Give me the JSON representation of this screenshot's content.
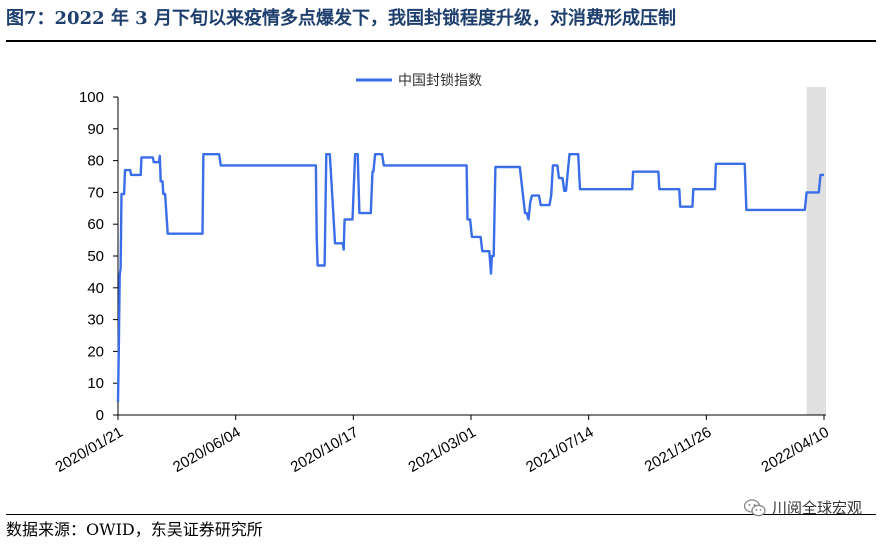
{
  "header": {
    "title": "图7：2022 年 3 月下旬以来疫情多点爆发下，我国封锁程度升级，对消费形成压制"
  },
  "footer": {
    "source": "数据来源：OWID，东吴证券研究所",
    "watermark": "川阅全球宏观",
    "watermark_icon": "wechat-icon"
  },
  "colors": {
    "line": "#3a6ee8",
    "shade": "#e0e0e0",
    "title": "#1e3f6e"
  },
  "chart_data": {
    "type": "line",
    "title": "",
    "xlabel": "",
    "ylabel": "",
    "ylim": [
      0,
      100
    ],
    "yticks": [
      0,
      10,
      20,
      30,
      40,
      50,
      60,
      70,
      80,
      90,
      100
    ],
    "xlim": [
      "2020-01-21",
      "2022-04-10"
    ],
    "xticks": [
      "2020/01/21",
      "2020/06/04",
      "2020/10/17",
      "2021/03/01",
      "2021/07/14",
      "2021/11/26",
      "2022/04/10"
    ],
    "legend": {
      "position": "top-center",
      "entries": [
        "中国封锁指数"
      ]
    },
    "shaded_region": {
      "start": "2022-03-21",
      "end": "2022-04-10"
    },
    "series": [
      {
        "name": "中国封锁指数",
        "points": [
          [
            "2020-01-21",
            4
          ],
          [
            "2020-01-22",
            23
          ],
          [
            "2020-01-23",
            44
          ],
          [
            "2020-01-24",
            46
          ],
          [
            "2020-01-25",
            69.5
          ],
          [
            "2020-01-28",
            69.5
          ],
          [
            "2020-01-29",
            77
          ],
          [
            "2020-02-04",
            77
          ],
          [
            "2020-02-05",
            75.5
          ],
          [
            "2020-02-16",
            75.5
          ],
          [
            "2020-02-17",
            81
          ],
          [
            "2020-03-01",
            81
          ],
          [
            "2020-03-02",
            79.5
          ],
          [
            "2020-03-08",
            79.5
          ],
          [
            "2020-03-09",
            81.5
          ],
          [
            "2020-03-10",
            73.5
          ],
          [
            "2020-03-12",
            73.5
          ],
          [
            "2020-03-13",
            69.5
          ],
          [
            "2020-03-15",
            69.5
          ],
          [
            "2020-03-18",
            57
          ],
          [
            "2020-04-27",
            57
          ],
          [
            "2020-04-28",
            82
          ],
          [
            "2020-05-16",
            82
          ],
          [
            "2020-05-18",
            78.5
          ],
          [
            "2020-09-04",
            78.5
          ],
          [
            "2020-09-05",
            56
          ],
          [
            "2020-09-06",
            47
          ],
          [
            "2020-09-14",
            47
          ],
          [
            "2020-09-16",
            82
          ],
          [
            "2020-09-20",
            82
          ],
          [
            "2020-09-24",
            63.5
          ],
          [
            "2020-09-26",
            54
          ],
          [
            "2020-10-05",
            54
          ],
          [
            "2020-10-06",
            52
          ],
          [
            "2020-10-07",
            61.5
          ],
          [
            "2020-10-16",
            61.5
          ],
          [
            "2020-10-19",
            82
          ],
          [
            "2020-10-22",
            82
          ],
          [
            "2020-10-24",
            63.5
          ],
          [
            "2020-11-06",
            63.5
          ],
          [
            "2020-11-08",
            76.5
          ],
          [
            "2020-11-09",
            76.5
          ],
          [
            "2020-11-11",
            82
          ],
          [
            "2020-11-19",
            82
          ],
          [
            "2020-11-21",
            78.5
          ],
          [
            "2021-02-24",
            78.5
          ],
          [
            "2021-02-25",
            61.5
          ],
          [
            "2021-02-28",
            61.5
          ],
          [
            "2021-03-02",
            56
          ],
          [
            "2021-03-12",
            56
          ],
          [
            "2021-03-14",
            51.5
          ],
          [
            "2021-03-22",
            51.5
          ],
          [
            "2021-03-24",
            44.5
          ],
          [
            "2021-03-25",
            50
          ],
          [
            "2021-03-27",
            50
          ],
          [
            "2021-03-29",
            78
          ],
          [
            "2021-04-26",
            78
          ],
          [
            "2021-05-02",
            63.5
          ],
          [
            "2021-05-04",
            63.5
          ],
          [
            "2021-05-06",
            61.5
          ],
          [
            "2021-05-08",
            67
          ],
          [
            "2021-05-10",
            69
          ],
          [
            "2021-05-18",
            69
          ],
          [
            "2021-05-20",
            66
          ],
          [
            "2021-05-30",
            66
          ],
          [
            "2021-06-01",
            69
          ],
          [
            "2021-06-03",
            78.5
          ],
          [
            "2021-06-08",
            78.5
          ],
          [
            "2021-06-10",
            74.5
          ],
          [
            "2021-06-14",
            74.5
          ],
          [
            "2021-06-16",
            70.5
          ],
          [
            "2021-06-18",
            70.5
          ],
          [
            "2021-06-22",
            82
          ],
          [
            "2021-07-02",
            82
          ],
          [
            "2021-07-04",
            71
          ],
          [
            "2021-09-02",
            71
          ],
          [
            "2021-09-03",
            76.5
          ],
          [
            "2021-10-02",
            76.5
          ],
          [
            "2021-10-03",
            71
          ],
          [
            "2021-10-26",
            71
          ],
          [
            "2021-10-27",
            65.5
          ],
          [
            "2021-11-10",
            65.5
          ],
          [
            "2021-11-11",
            71
          ],
          [
            "2021-12-06",
            71
          ],
          [
            "2021-12-07",
            79
          ],
          [
            "2022-01-09",
            79
          ],
          [
            "2022-01-11",
            64.5
          ],
          [
            "2022-03-19",
            64.5
          ],
          [
            "2022-03-21",
            70
          ],
          [
            "2022-04-04",
            70
          ],
          [
            "2022-04-06",
            75.5
          ],
          [
            "2022-04-10",
            75.5
          ]
        ]
      }
    ]
  }
}
